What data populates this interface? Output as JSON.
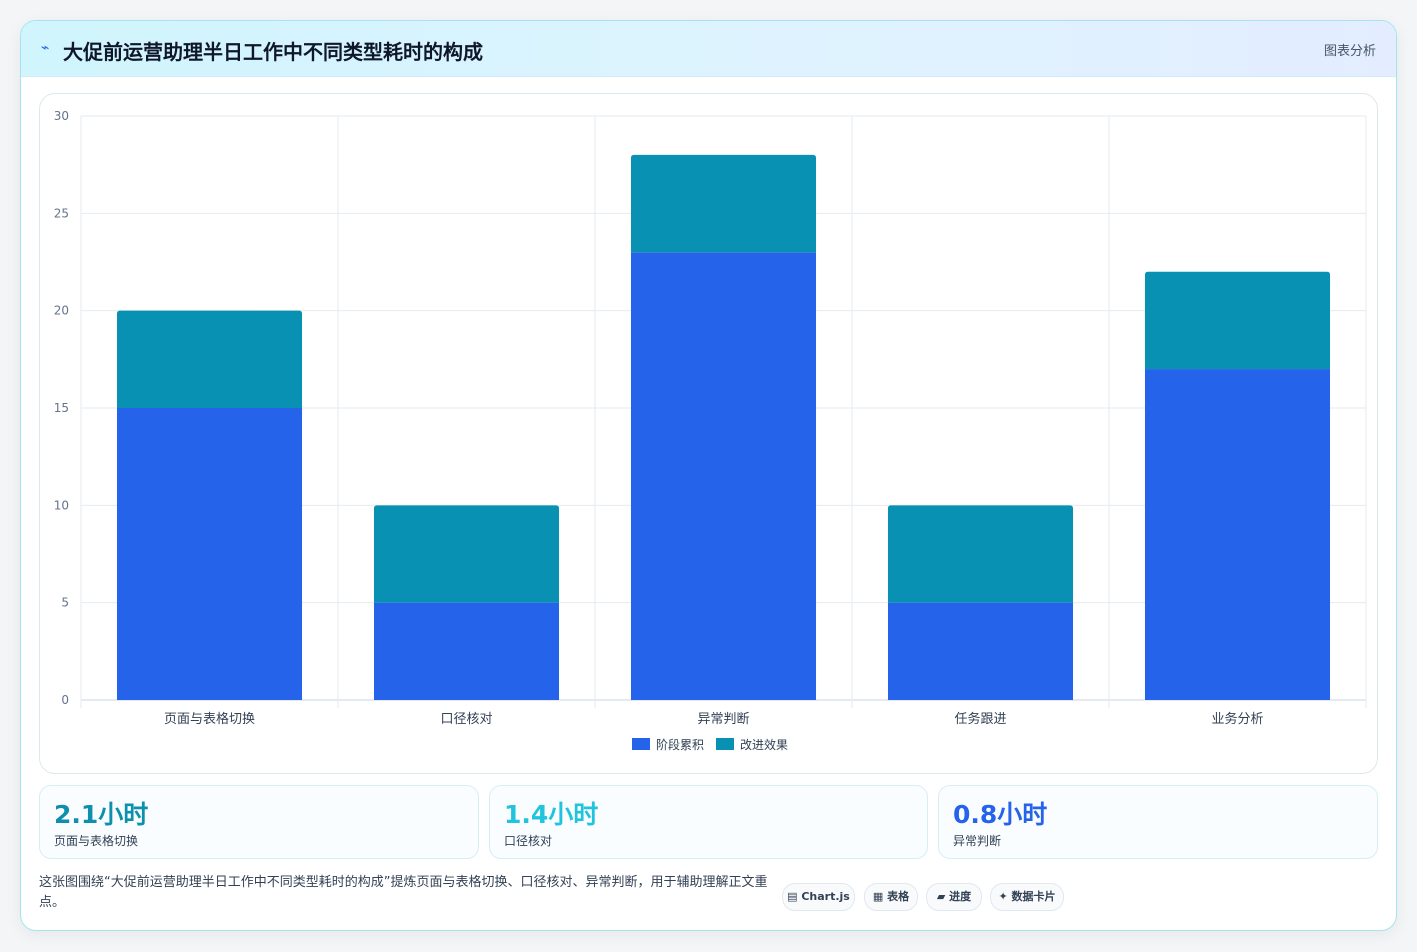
{
  "header": {
    "icon": "sparkline-icon",
    "title": "大促前运营助理半日工作中不同类型耗时的构成",
    "tag": "图表分析"
  },
  "chart_data": {
    "type": "bar",
    "stacked": true,
    "categories": [
      "页面与表格切换",
      "口径核对",
      "异常判断",
      "任务跟进",
      "业务分析"
    ],
    "series": [
      {
        "name": "阶段累积",
        "values": [
          15,
          5,
          23,
          5,
          17
        ],
        "color": "#2563eb"
      },
      {
        "name": "改进效果",
        "values": [
          5,
          5,
          5,
          5,
          5
        ],
        "color": "#0891b2"
      }
    ],
    "ylim": [
      0,
      30
    ],
    "yticks": [
      0,
      5,
      10,
      15,
      20,
      25,
      30
    ],
    "grid": true,
    "legend": "bottom"
  },
  "stats": [
    {
      "value": "2.1小时",
      "label": "页面与表格切换",
      "color": "#0e8fae"
    },
    {
      "value": "1.4小时",
      "label": "口径核对",
      "color": "#22c3dd"
    },
    {
      "value": "0.8小时",
      "label": "异常判断",
      "color": "#2563eb"
    }
  ],
  "footer": {
    "text": "这张图围绕“大促前运营助理半日工作中不同类型耗时的构成”提炼页面与表格切换、口径核对、异常判断，用于辅助理解正文重点。",
    "chips": [
      "▤ Chart.js",
      "▦ 表格",
      "▰ 进度",
      "✦ 数据卡片"
    ]
  }
}
